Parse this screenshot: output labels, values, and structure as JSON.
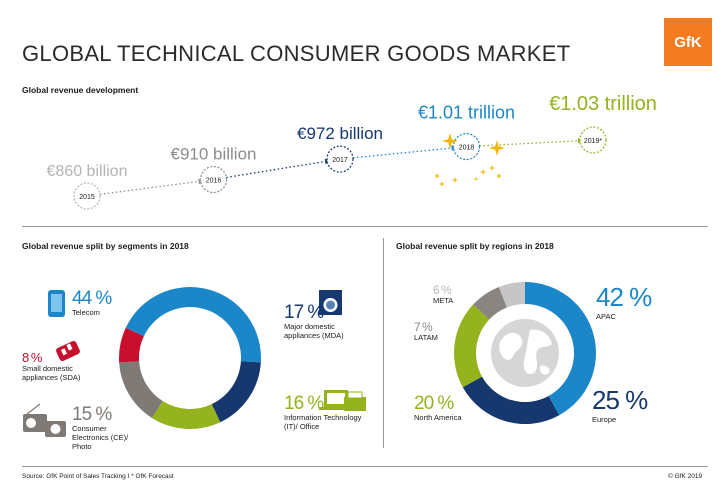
{
  "header": {
    "title": "GLOBAL TECHNICAL CONSUMER GOODS MARKET",
    "logo_text": "GfK",
    "logo_color": "#f47b20"
  },
  "revenue_section": {
    "title": "Global revenue development"
  },
  "segments_section": {
    "title": "Global revenue split by segments in 2018"
  },
  "regions_section": {
    "title": "Global revenue split by regions in 2018"
  },
  "footer": {
    "source": "Source: GfK Point of Sales Tracking I * GfK Forecast",
    "copyright": "© GfK 2019"
  },
  "chart_data": [
    {
      "type": "line",
      "categories": [
        "2015",
        "2016",
        "2017",
        "2018",
        "2019*"
      ],
      "values": [
        860,
        910,
        972,
        1010,
        1030
      ],
      "value_labels": [
        "€860 billion",
        "€910 billion",
        "€972 billion",
        "€1.01 trillion",
        "€1.03 trillion"
      ],
      "colors": [
        "#b4b4b4",
        "#8c8c8c",
        "#16386e",
        "#1b87c9",
        "#94b31f"
      ],
      "title": "Global revenue development"
    },
    {
      "type": "pie",
      "title": "Global revenue split by segments in 2018",
      "labels": [
        "Telecom",
        "Major domestic appliances (MDA)",
        "Information Technology (IT)/ Office",
        "Consumer Electronics (CE)/ Photo",
        "Small domestic appliances (SDA)"
      ],
      "values": [
        44,
        17,
        16,
        15,
        8
      ],
      "value_labels": [
        "44 %",
        "17 %",
        "16 %",
        "15 %",
        "8 %"
      ],
      "colors": [
        "#1b87c9",
        "#16386e",
        "#94b31f",
        "#7f7a76",
        "#c8102e"
      ],
      "icons": [
        "smartphone-icon",
        "washing-machine-icon",
        "laptop-printer-icon",
        "radio-camera-icon",
        "toaster-hairdryer-icon"
      ]
    },
    {
      "type": "pie",
      "title": "Global revenue split by regions in 2018",
      "labels": [
        "APAC",
        "Europe",
        "North America",
        "LATAM",
        "META"
      ],
      "values": [
        42,
        25,
        20,
        7,
        6
      ],
      "value_labels": [
        "42 %",
        "25 %",
        "20 %",
        "7 %",
        "6 %"
      ],
      "colors": [
        "#1b87c9",
        "#16386e",
        "#94b31f",
        "#8a8581",
        "#c6c6c6"
      ],
      "icons": [
        "globe-icon"
      ]
    }
  ]
}
